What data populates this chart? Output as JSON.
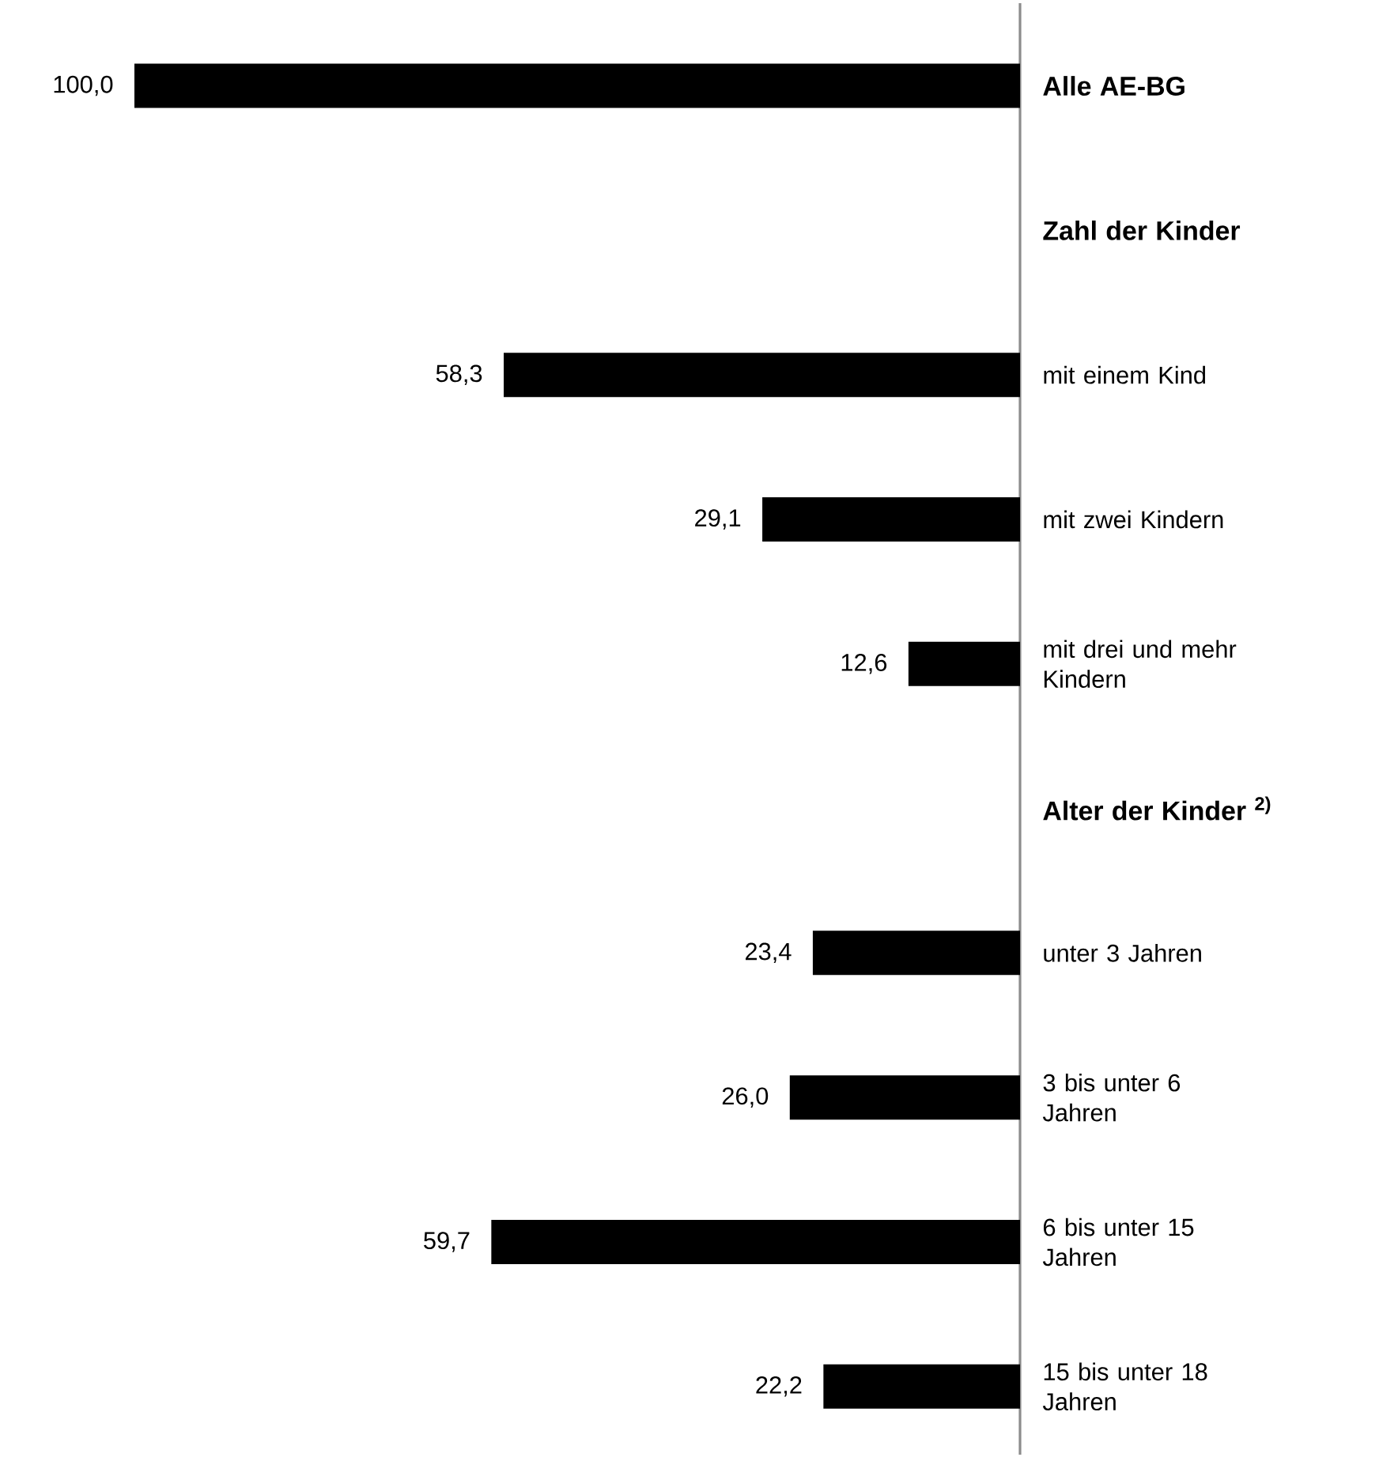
{
  "chart_data": {
    "type": "bar",
    "orientation": "horizontal",
    "categories": [
      "Alle AE-BG",
      "Zahl der Kinder",
      "mit einem Kind",
      "mit zwei Kindern",
      "mit drei und mehr Kindern",
      "Alter der Kinder $^{2)}$",
      "unter 3 Jahren",
      "3 bis unter 6 Jahren",
      "6 bis unter 15 Jahren",
      "15 bis unter 18 Jahren"
    ],
    "values": [
      100.0,
      null,
      58.3,
      29.1,
      12.6,
      null,
      23.4,
      26.0,
      59.7,
      22.2
    ],
    "value_labels": [
      "100,0",
      null,
      "58,3",
      "29,1",
      "12,6",
      null,
      "23,4",
      "26,0",
      "59,7",
      "22,2"
    ],
    "color": "#000000",
    "xlim": [
      100,
      0
    ],
    "tick_labels": "y",
    "grid": false
  }
}
